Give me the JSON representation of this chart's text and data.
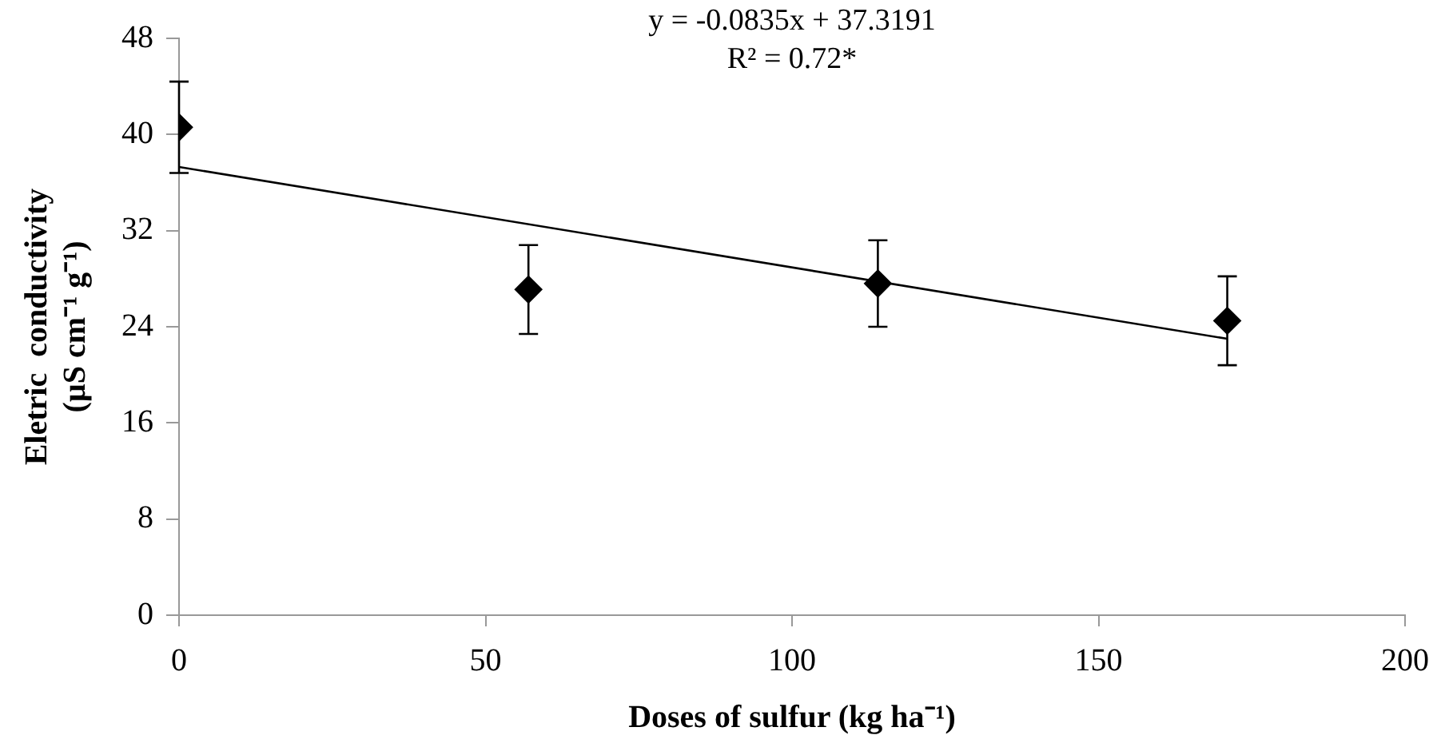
{
  "chart_data": {
    "type": "scatter",
    "xlabel": "Doses of sulfur (kg ha⁻¹)",
    "ylabel": "Eletric  conductivity\n(µS cm⁻¹ g⁻¹)",
    "annotations": [
      "y = -0.0835x + 37.3191",
      "R² = 0.72*"
    ],
    "series": [
      {
        "color": "#000000",
        "marker": "diamond",
        "x": [
          0,
          57,
          114,
          171
        ],
        "values": [
          40.6,
          27.1,
          27.6,
          24.5
        ],
        "errors": [
          3.8,
          3.7,
          3.6,
          3.7
        ]
      },
      {
        "type": "line",
        "color": "#000000",
        "marker": "none",
        "line_style": "solid",
        "x": [
          0,
          171
        ],
        "values": [
          37.3,
          23.0
        ]
      }
    ],
    "xlim": [
      0,
      200
    ],
    "xticks": [
      0,
      50,
      100,
      150,
      200
    ],
    "ylim": [
      0,
      48
    ],
    "yticks": [
      0,
      8,
      16,
      24,
      32,
      40,
      48
    ],
    "grid": false,
    "legend": false
  }
}
